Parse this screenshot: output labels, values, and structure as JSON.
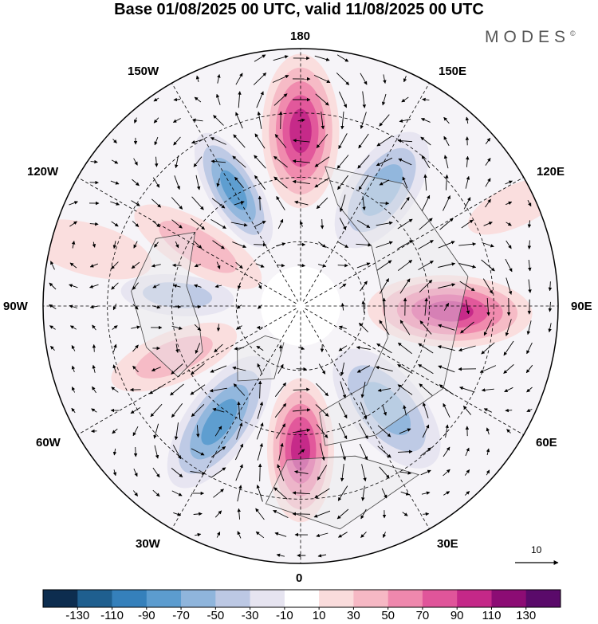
{
  "title": "Base 01/08/2025 00 UTC, valid 11/08/2025 00 UTC",
  "brand": "MODES",
  "brand_mark": "©",
  "longitude_labels": {
    "top": "180",
    "bottom": "0",
    "left": "90W",
    "right": "90E",
    "upper_left_1": "150W",
    "upper_left_2": "120W",
    "lower_left_1": "60W",
    "lower_left_2": "30W",
    "upper_right_1": "150E",
    "upper_right_2": "120E",
    "lower_right_1": "60E",
    "lower_right_2": "30E"
  },
  "vector_scale_label": "10",
  "colorbar": {
    "colors": [
      "#0d2d4f",
      "#1f5f8f",
      "#3580bb",
      "#5c9ccf",
      "#8fb5dc",
      "#bcc8e4",
      "#e6e4f0",
      "#ffffff",
      "#fadcdc",
      "#f6b8c4",
      "#ef88ad",
      "#e0559a",
      "#c42888",
      "#8c0c74",
      "#5a0a6a"
    ],
    "labels": [
      "-130",
      "-110",
      "-90",
      "-70",
      "-50",
      "-30",
      "-10",
      "10",
      "30",
      "50",
      "70",
      "90",
      "110",
      "130"
    ]
  },
  "anomaly_centers": [
    {
      "lon": 180,
      "dist": 0.68,
      "value": 110,
      "rx": 0.15,
      "ry": 0.3
    },
    {
      "lon": 145,
      "dist": 0.55,
      "value": -70,
      "rx": 0.13,
      "ry": 0.26
    },
    {
      "lon": -150,
      "dist": 0.52,
      "value": -80,
      "rx": 0.1,
      "ry": 0.25
    },
    {
      "lon": -120,
      "dist": 0.46,
      "value": 50,
      "rx": 0.1,
      "ry": 0.28
    },
    {
      "lon": -95,
      "dist": 0.48,
      "value": -40,
      "rx": 0.08,
      "ry": 0.22
    },
    {
      "lon": 88,
      "dist": 0.58,
      "value": 110,
      "rx": 0.14,
      "ry": 0.32
    },
    {
      "lon": 40,
      "dist": 0.52,
      "value": -70,
      "rx": 0.14,
      "ry": 0.28
    },
    {
      "lon": 0,
      "dist": 0.56,
      "value": 110,
      "rx": 0.13,
      "ry": 0.28
    },
    {
      "lon": -35,
      "dist": 0.55,
      "value": -90,
      "rx": 0.13,
      "ry": 0.3
    },
    {
      "lon": -68,
      "dist": 0.53,
      "value": 50,
      "rx": 0.1,
      "ry": 0.26
    },
    {
      "lon": -105,
      "dist": 0.85,
      "value": 30,
      "rx": 0.1,
      "ry": 0.25
    },
    {
      "lon": 115,
      "dist": 0.92,
      "value": 20,
      "rx": 0.08,
      "ry": 0.2
    }
  ]
}
